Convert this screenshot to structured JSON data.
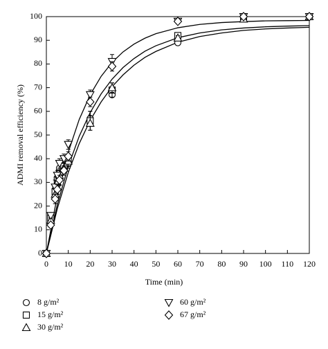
{
  "chart_data": {
    "type": "scatter",
    "x_label": "Time (min)",
    "y_label": "ADMI removal efficiency (%)",
    "x": [
      0,
      2,
      4,
      5,
      6,
      8,
      10,
      20,
      30,
      60,
      90,
      120
    ],
    "series": [
      {
        "name": "8 g/m²",
        "marker": "circle",
        "color": "#000000",
        "values": [
          0,
          16,
          27,
          32,
          36,
          37,
          38,
          57,
          67,
          89,
          99,
          100
        ],
        "errors": [
          0,
          1,
          2,
          2,
          2,
          2,
          2,
          3,
          1,
          1,
          1,
          0
        ]
      },
      {
        "name": "15 g/m²",
        "marker": "square",
        "color": "#000000",
        "values": [
          0,
          15,
          26,
          31,
          34,
          37,
          40,
          56,
          69,
          92,
          100,
          100
        ],
        "errors": [
          0,
          1,
          2,
          2,
          2,
          2,
          2,
          4,
          3,
          1,
          1,
          0
        ]
      },
      {
        "name": "30 g/m²",
        "marker": "triangle-up",
        "color": "#000000",
        "values": [
          0,
          14,
          25,
          30,
          33,
          36,
          39,
          55,
          70,
          91,
          99,
          100
        ],
        "errors": [
          0,
          1,
          2,
          2,
          2,
          2,
          2,
          3,
          2,
          1,
          1,
          0
        ]
      },
      {
        "name": "60 g/m²",
        "marker": "triangle-down",
        "color": "#000000",
        "values": [
          0,
          16,
          28,
          33,
          38,
          40,
          46,
          67,
          81,
          98,
          100,
          100
        ],
        "errors": [
          0,
          1,
          3,
          2,
          2,
          2,
          2,
          2,
          3,
          1,
          1,
          0
        ]
      },
      {
        "name": "67 g/m²",
        "marker": "diamond",
        "color": "#000000",
        "values": [
          0,
          12,
          23,
          27,
          31,
          35,
          41,
          64,
          79,
          98,
          100,
          100
        ],
        "errors": [
          0,
          1,
          2,
          2,
          2,
          2,
          2,
          2,
          2,
          1,
          1,
          0
        ]
      }
    ],
    "fit_x": [
      0,
      5,
      10,
      15,
      20,
      25,
      30,
      35,
      40,
      45,
      50,
      60,
      70,
      80,
      90,
      100,
      110,
      120
    ],
    "fits": [
      {
        "color": "#000000",
        "values": [
          0,
          24.4,
          42.8,
          56.6,
          67.0,
          74.8,
          80.7,
          85.1,
          88.4,
          90.9,
          92.8,
          95.3,
          96.7,
          97.5,
          97.9,
          98.2,
          98.3,
          98.4
        ]
      },
      {
        "color": "#000000",
        "values": [
          0,
          20.6,
          36.8,
          49.5,
          59.5,
          67.4,
          73.6,
          78.5,
          82.3,
          85.4,
          87.7,
          91.1,
          93.1,
          94.4,
          95.2,
          95.7,
          96.0,
          96.2
        ]
      },
      {
        "color": "#000000",
        "values": [
          0,
          18.9,
          34.2,
          46.4,
          56.2,
          64.0,
          70.4,
          75.4,
          79.5,
          82.8,
          85.3,
          89.2,
          91.6,
          93.1,
          94.2,
          94.8,
          95.2,
          95.5
        ]
      }
    ],
    "xlim": [
      0,
      120
    ],
    "ylim": [
      0,
      100
    ],
    "xticks": [
      0,
      10,
      20,
      30,
      40,
      50,
      60,
      70,
      80,
      90,
      100,
      110,
      120
    ],
    "yticks": [
      0,
      10,
      20,
      30,
      40,
      50,
      60,
      70,
      80,
      90,
      100
    ]
  }
}
